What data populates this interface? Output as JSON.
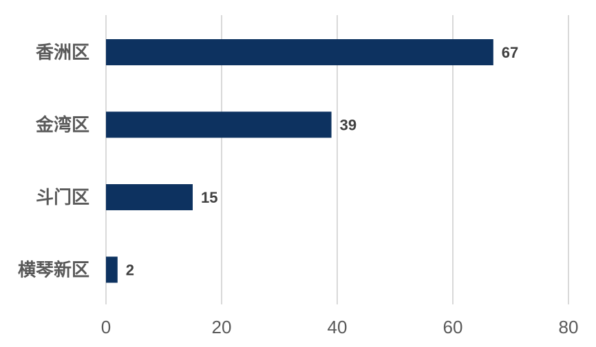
{
  "chart_data": {
    "type": "bar",
    "orientation": "horizontal",
    "categories": [
      "香洲区",
      "金湾区",
      "斗门区",
      "横琴新区"
    ],
    "values": [
      67,
      39,
      15,
      2
    ],
    "xlim": [
      0,
      80
    ],
    "xticks": [
      0,
      20,
      40,
      60,
      80
    ],
    "grid": "vertical",
    "bar_color": "#0d3260",
    "show_data_labels": true
  }
}
